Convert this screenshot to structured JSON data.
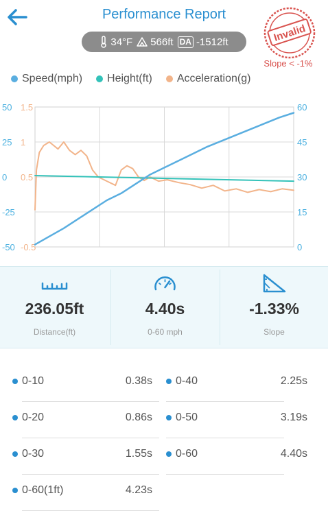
{
  "header": {
    "title": "Performance Report",
    "back_icon": "arrow-left-icon",
    "stamp": {
      "text": "Invalid",
      "note": "Slope < -1%",
      "color": "#d9534f"
    }
  },
  "conditions": {
    "temperature": "34°F",
    "elevation": "566ft",
    "da_label": "DA",
    "density_altitude": "-1512ft"
  },
  "legend": [
    {
      "label": "Speed(mph)",
      "color": "#5aaee0"
    },
    {
      "label": "Height(ft)",
      "color": "#33c2b9"
    },
    {
      "label": "Acceleration(g)",
      "color": "#f2b48a"
    }
  ],
  "chart_data": {
    "type": "line",
    "x_range": [
      0,
      9
    ],
    "axes": {
      "height": {
        "ticks": [
          "50",
          "25",
          "0",
          "-25",
          "-50"
        ],
        "range": [
          -50,
          50
        ],
        "color": "#4ab0e0"
      },
      "acceleration": {
        "ticks": [
          "1.5",
          "1",
          "0.5",
          "-0.5"
        ],
        "range": [
          -0.5,
          1.5
        ],
        "color": "#f2b48a"
      },
      "speed": {
        "ticks": [
          "60",
          "45",
          "30",
          "15",
          "0"
        ],
        "range": [
          0,
          60
        ],
        "color": "#4ab0e0"
      }
    },
    "series": [
      {
        "name": "Speed(mph)",
        "axis": "speed",
        "color": "#5aaee0",
        "x": [
          0,
          0.5,
          1,
          1.5,
          2,
          2.5,
          3,
          3.5,
          4,
          4.5,
          5,
          5.5,
          6,
          6.5,
          7,
          7.5,
          8,
          8.5,
          9
        ],
        "y": [
          1,
          4.5,
          8,
          12,
          16,
          20,
          23,
          27,
          31,
          34,
          37,
          40,
          43,
          45.5,
          48,
          50.5,
          53,
          55.5,
          57.5
        ]
      },
      {
        "name": "Height(ft)",
        "axis": "height",
        "color": "#33c2b9",
        "x": [
          0,
          9
        ],
        "y": [
          1,
          -3
        ]
      },
      {
        "name": "Acceleration(g)",
        "axis": "acceleration",
        "color": "#f2b48a",
        "x": [
          0,
          0.05,
          0.15,
          0.3,
          0.5,
          0.8,
          1.0,
          1.2,
          1.4,
          1.6,
          1.8,
          2.0,
          2.2,
          2.5,
          2.8,
          3.0,
          3.2,
          3.4,
          3.6,
          3.8,
          4.0,
          4.3,
          4.6,
          5.0,
          5.4,
          5.8,
          6.2,
          6.6,
          7.0,
          7.4,
          7.8,
          8.2,
          8.6,
          9.0
        ],
        "y": [
          0.03,
          0.6,
          0.85,
          0.95,
          1.0,
          0.9,
          1.0,
          0.88,
          0.82,
          0.88,
          0.8,
          0.6,
          0.5,
          0.44,
          0.38,
          0.6,
          0.66,
          0.62,
          0.5,
          0.45,
          0.5,
          0.44,
          0.46,
          0.42,
          0.39,
          0.34,
          0.38,
          0.3,
          0.33,
          0.28,
          0.32,
          0.29,
          0.33,
          0.31
        ]
      }
    ]
  },
  "stats": [
    {
      "value": "236.05ft",
      "label": "Distance(ft)",
      "icon": "ruler-icon"
    },
    {
      "value": "4.40s",
      "label": "0-60 mph",
      "icon": "speedometer-icon"
    },
    {
      "value": "-1.33%",
      "label": "Slope",
      "icon": "slope-icon"
    }
  ],
  "times": {
    "left": [
      {
        "range": "0-10",
        "time": "0.38s"
      },
      {
        "range": "0-20",
        "time": "0.86s"
      },
      {
        "range": "0-30",
        "time": "1.55s"
      },
      {
        "range": "0-60(1ft)",
        "time": "4.23s"
      }
    ],
    "right": [
      {
        "range": "0-40",
        "time": "2.25s"
      },
      {
        "range": "0-50",
        "time": "3.19s"
      },
      {
        "range": "0-60",
        "time": "4.40s"
      }
    ]
  }
}
